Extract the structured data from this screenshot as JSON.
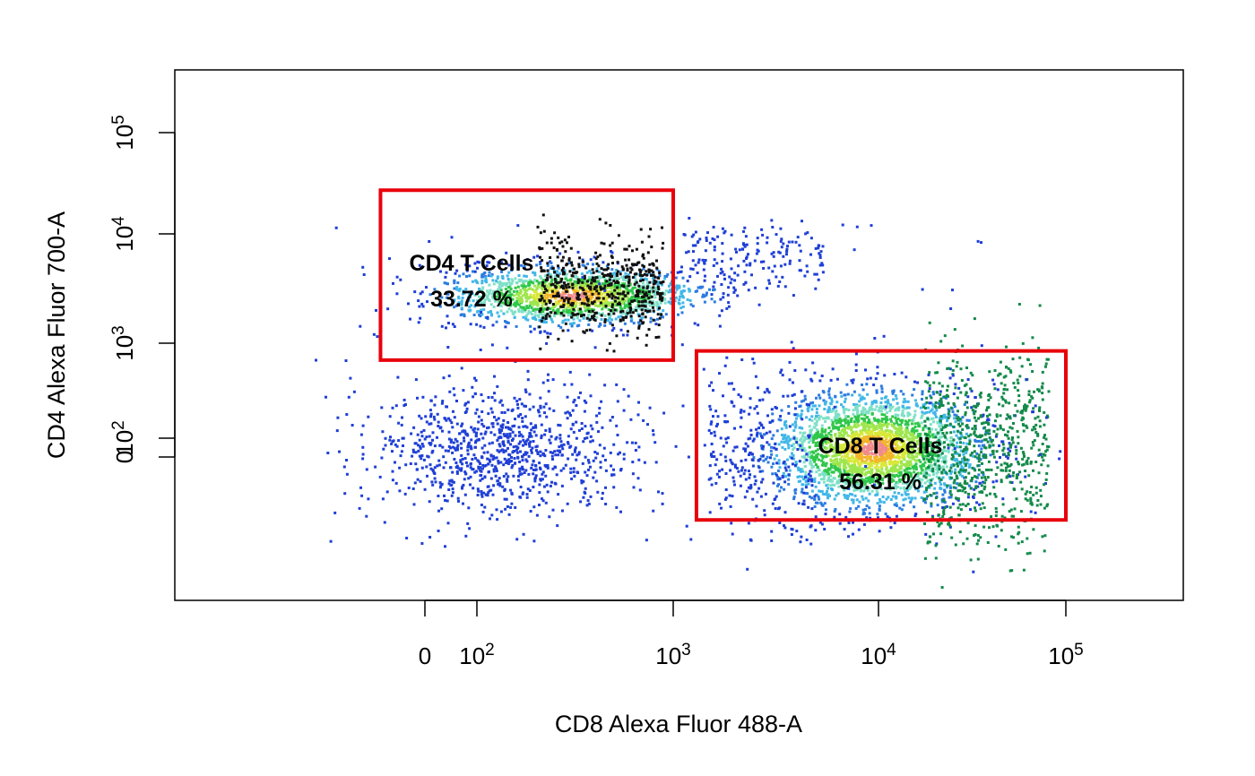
{
  "chart_data": {
    "type": "scatter",
    "title": "",
    "xlabel": "CD8 Alexa Fluor 488-A",
    "ylabel": "CD4 Alexa Fluor 700-A",
    "x_scale": "biexponential",
    "y_scale": "biexponential",
    "x_ticks": [
      {
        "value": 0,
        "label": "0"
      },
      {
        "value": 100,
        "label": "10^2"
      },
      {
        "value": 1000,
        "label": "10^3"
      },
      {
        "value": 10000,
        "label": "10^4"
      },
      {
        "value": 100000,
        "label": "10^5"
      }
    ],
    "y_ticks": [
      {
        "value": 0,
        "label": "0"
      },
      {
        "value": 100,
        "label": "10^2"
      },
      {
        "value": 1000,
        "label": "10^3"
      },
      {
        "value": 10000,
        "label": "10^4"
      },
      {
        "value": 100000,
        "label": "10^5"
      }
    ],
    "grid": false,
    "gates": [
      {
        "name": "CD4 T Cells",
        "percent_label": "33.72 %",
        "x_range": [
          -150,
          1000
        ],
        "y_range": [
          700,
          27000
        ],
        "color": "#e8000b"
      },
      {
        "name": "CD8 T Cells",
        "percent_label": "56.31 %",
        "x_range": [
          1300,
          100000
        ],
        "y_range": [
          -500,
          850
        ],
        "color": "#e8000b"
      }
    ],
    "populations": [
      {
        "x_center": 700,
        "y_center": 2700,
        "share": 0.3372
      },
      {
        "x_center": 9500,
        "y_center": 40,
        "share": 0.5631
      },
      {
        "x_center": 150,
        "y_center": 30,
        "share": 0.1
      }
    ]
  }
}
